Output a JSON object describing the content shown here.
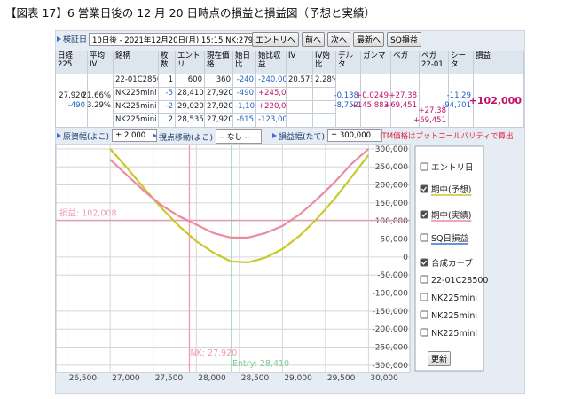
{
  "header": {
    "title": "【図表 17】6 営業日後の 12 月 20 日時点の損益と損益図（予想と実績）"
  },
  "toolbar": {
    "label": "検証日",
    "select": "10日後 - 2021年12月20日(月) 15:15 NK:27920",
    "buttons": [
      "エントリへ",
      "前へ",
      "次へ",
      "最新へ",
      "SQ損益"
    ]
  },
  "table": {
    "headers": [
      "日経225",
      "平均IV",
      "銘柄",
      "枚数",
      "エントリ",
      "現在価格",
      "始日比",
      "始比収益",
      "IV",
      "IV始比",
      "デルタ",
      "ガンマ",
      "ベガ",
      "ベガ\n22-01",
      "シータ",
      "損益"
    ],
    "rows": [
      [
        "22-01C28500",
        "1",
        "600",
        "360",
        "-240",
        "-240,000",
        "20.57%",
        "2.28%"
      ],
      [
        "NK225mini",
        "-5",
        "28,410",
        "27,920",
        "-490",
        "+245,000"
      ],
      [
        "NK225mini",
        "-2",
        "29,020",
        "27,920",
        "-1,100",
        "+220,000"
      ],
      [
        "NK225mini",
        "2",
        "28,535",
        "27,920",
        "-615",
        "-123,000"
      ]
    ],
    "summary": {
      "nikkei": [
        "27,920",
        "-490"
      ],
      "avg_iv": [
        "21.66%",
        "3.29%"
      ],
      "delta": [
        "-0.138",
        "-8,752"
      ],
      "gamma": [
        "+0.0249",
        "+145,883"
      ],
      "vega": [
        "+27.38",
        "+69,451"
      ],
      "vega_2201": [
        "+27.38",
        "+69,451"
      ],
      "theta": [
        "-11.29",
        "-94,701"
      ],
      "pnl": "+102,000"
    }
  },
  "controls": [
    {
      "label": "原資幅(よこ)",
      "select": "± 2,000"
    },
    {
      "label": "視点移動(よこ)",
      "select": "-- なし --"
    },
    {
      "label": "損益幅(たて)",
      "select": "± 300,000"
    }
  ],
  "note": "ITM価格はプットコールパリティで算出",
  "chart_data": {
    "type": "line",
    "x": [
      27000,
      27200,
      27400,
      27600,
      27800,
      28000,
      28200,
      28400,
      28600,
      28800,
      29000,
      29200,
      29400,
      29600,
      29800,
      30000
    ],
    "series": [
      {
        "name": "期中(予想)",
        "color": "#c9c92a",
        "checked": true,
        "values": [
          300000,
          246000,
          189000,
          135000,
          86000,
          44000,
          12000,
          -12000,
          -15000,
          -2000,
          22000,
          59000,
          106000,
          160000,
          221000,
          283000
        ]
      },
      {
        "name": "期中(実績)",
        "color": "#ec8aa0",
        "checked": true,
        "values": [
          270000,
          226000,
          182000,
          143000,
          113000,
          90000,
          66000,
          54000,
          54000,
          66000,
          86000,
          118000,
          160000,
          206000,
          258000,
          300000
        ]
      }
    ],
    "xlim": [
      26370,
      30480
    ],
    "ylim": [
      -320000,
      312000
    ],
    "xticks": [
      {
        "value": 26500,
        "label": "26,500"
      },
      {
        "value": 27000,
        "label": "27,000"
      },
      {
        "value": 27500,
        "label": "27,500"
      },
      {
        "value": 28000,
        "label": "28,000"
      },
      {
        "value": 28500,
        "label": "28,500"
      },
      {
        "value": 29000,
        "label": "29,000"
      },
      {
        "value": 29500,
        "label": "29,500"
      },
      {
        "value": 30000,
        "label": "30,000"
      }
    ],
    "yticks": [
      {
        "value": 300000,
        "label": "300,000"
      },
      {
        "value": 250000,
        "label": "250,000"
      },
      {
        "value": 200000,
        "label": "200,000"
      },
      {
        "value": 150000,
        "label": "150,000"
      },
      {
        "value": 100000,
        "label": "100,000"
      },
      {
        "value": 50000,
        "label": "50,000"
      },
      0,
      {
        "value": -50000,
        "label": "-50,000"
      },
      {
        "value": -100000,
        "label": "-100,000"
      },
      {
        "value": -150000,
        "label": "-150,000"
      },
      {
        "value": -200000,
        "label": "-200,000"
      },
      {
        "value": -250000,
        "label": "-250,000"
      },
      {
        "value": -300000,
        "label": "-300,000"
      }
    ],
    "grid": true,
    "annotations": [
      {
        "axis": "y",
        "value": 102008,
        "label": "損益: 102,008",
        "color": "#f09cb0"
      },
      {
        "axis": "x",
        "value": 27920,
        "label": "NK: 27,920",
        "color": "#f09cb0"
      },
      {
        "axis": "x",
        "value": 28410,
        "label": "Entry: 28,410",
        "color": "#7cc89a"
      }
    ]
  },
  "legend_panel": {
    "top_items": [
      {
        "label": "エントリ日",
        "checked": false
      }
    ],
    "more_items": [
      {
        "label": "SQ日損益",
        "checked": false,
        "color": "#3a6fd8"
      },
      {
        "label": "合成カーブ",
        "checked": true
      },
      {
        "label": "22-01C28500",
        "checked": false
      },
      {
        "label": "NK225mini",
        "checked": false
      },
      {
        "label": "NK225mini",
        "checked": false
      },
      {
        "label": "NK225mini",
        "checked": false
      }
    ],
    "button": "更新"
  }
}
